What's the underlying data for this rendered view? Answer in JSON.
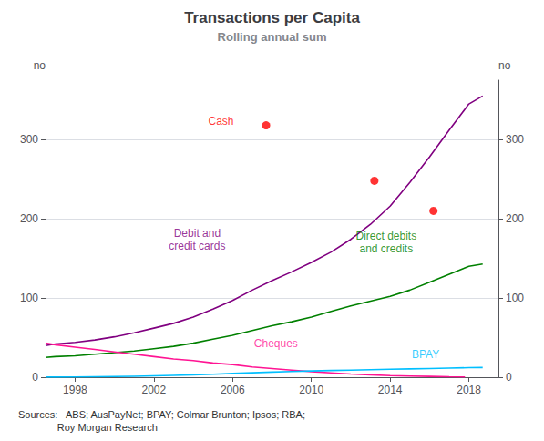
{
  "chart_data": {
    "type": "line",
    "title": "Transactions per Capita",
    "subtitle": "Rolling annual sum",
    "ylabel": "no",
    "y2label": "no",
    "sources": "Sources:   ABS; AusPayNet; BPAY; Colmar Brunton; Ipsos; RBA;\n              Roy Morgan Research",
    "xlim": [
      1996.5,
      2019.5
    ],
    "xticks": [
      1998,
      2002,
      2006,
      2010,
      2014,
      2018
    ],
    "ylim": [
      0,
      375
    ],
    "yticks": [
      0,
      100,
      200,
      300
    ],
    "y2lim": [
      0,
      375
    ],
    "y2ticks": [
      0,
      100,
      200,
      300
    ],
    "grid": true,
    "series": [
      {
        "name": "Debit and\ncredit cards",
        "type": "line",
        "color": "#800080",
        "x": [
          1996.5,
          1997,
          1998,
          1999,
          2000,
          2001,
          2002,
          2003,
          2004,
          2005,
          2006,
          2007,
          2008,
          2009,
          2010,
          2011,
          2012,
          2013,
          2014,
          2015,
          2016,
          2017,
          2018,
          2018.7
        ],
        "values": [
          40,
          42,
          44,
          47,
          51,
          56,
          62,
          68,
          76,
          86,
          97,
          110,
          122,
          133,
          145,
          158,
          174,
          193,
          216,
          246,
          278,
          312,
          345,
          355
        ]
      },
      {
        "name": "Direct debits\nand credits",
        "type": "line",
        "color": "#008000",
        "x": [
          1996.5,
          1997,
          1998,
          1999,
          2000,
          2001,
          2002,
          2003,
          2004,
          2005,
          2006,
          2007,
          2008,
          2009,
          2010,
          2011,
          2012,
          2013,
          2014,
          2015,
          2016,
          2017,
          2018,
          2018.7
        ],
        "values": [
          25,
          26,
          27,
          29,
          31,
          33,
          36,
          39,
          43,
          48,
          53,
          59,
          65,
          70,
          76,
          83,
          90,
          96,
          102,
          110,
          120,
          130,
          140,
          143
        ]
      },
      {
        "name": "Cheques",
        "type": "line",
        "color": "#FF1493",
        "x": [
          1996.5,
          1997,
          1998,
          1999,
          2000,
          2001,
          2002,
          2003,
          2004,
          2005,
          2006,
          2007,
          2008,
          2009,
          2010,
          2011,
          2012,
          2013,
          2014,
          2015,
          2016,
          2017,
          2017.8
        ],
        "values": [
          43,
          41,
          38,
          35,
          32,
          29,
          26,
          23,
          21,
          18,
          16,
          13,
          11,
          9,
          7,
          5.5,
          4,
          3,
          2,
          1.5,
          1,
          0.5,
          0.3
        ]
      },
      {
        "name": "BPAY",
        "type": "line",
        "color": "#00BFFF",
        "x": [
          1996.5,
          1997,
          1998,
          1999,
          2000,
          2001,
          2002,
          2003,
          2004,
          2005,
          2006,
          2007,
          2008,
          2009,
          2010,
          2011,
          2012,
          2013,
          2014,
          2015,
          2016,
          2017,
          2018,
          2018.7
        ],
        "values": [
          0.1,
          0.2,
          0.3,
          0.5,
          0.8,
          1.2,
          1.7,
          2.3,
          3.0,
          3.8,
          4.7,
          5.6,
          6.5,
          7.2,
          7.9,
          8.5,
          9.0,
          9.5,
          10.0,
          10.5,
          11.0,
          11.5,
          12.0,
          12.2
        ]
      },
      {
        "name": "Cash",
        "type": "scatter",
        "color": "#FF0000",
        "x": [
          2007.7,
          2013.2,
          2016.2
        ],
        "values": [
          318,
          248,
          210
        ]
      }
    ],
    "annotations": [
      {
        "text": "Cash",
        "x": 2005.5,
        "y": 323
      },
      {
        "text": "Debit and\ncredit cards",
        "x": 2004.2,
        "y": 155
      },
      {
        "text": "Direct debits\nand credits",
        "x": 2013.8,
        "y": 152
      },
      {
        "text": "Cheques",
        "x": 2008.2,
        "y": 32
      },
      {
        "text": "BPAY",
        "x": 2015.8,
        "y": 18
      }
    ]
  }
}
